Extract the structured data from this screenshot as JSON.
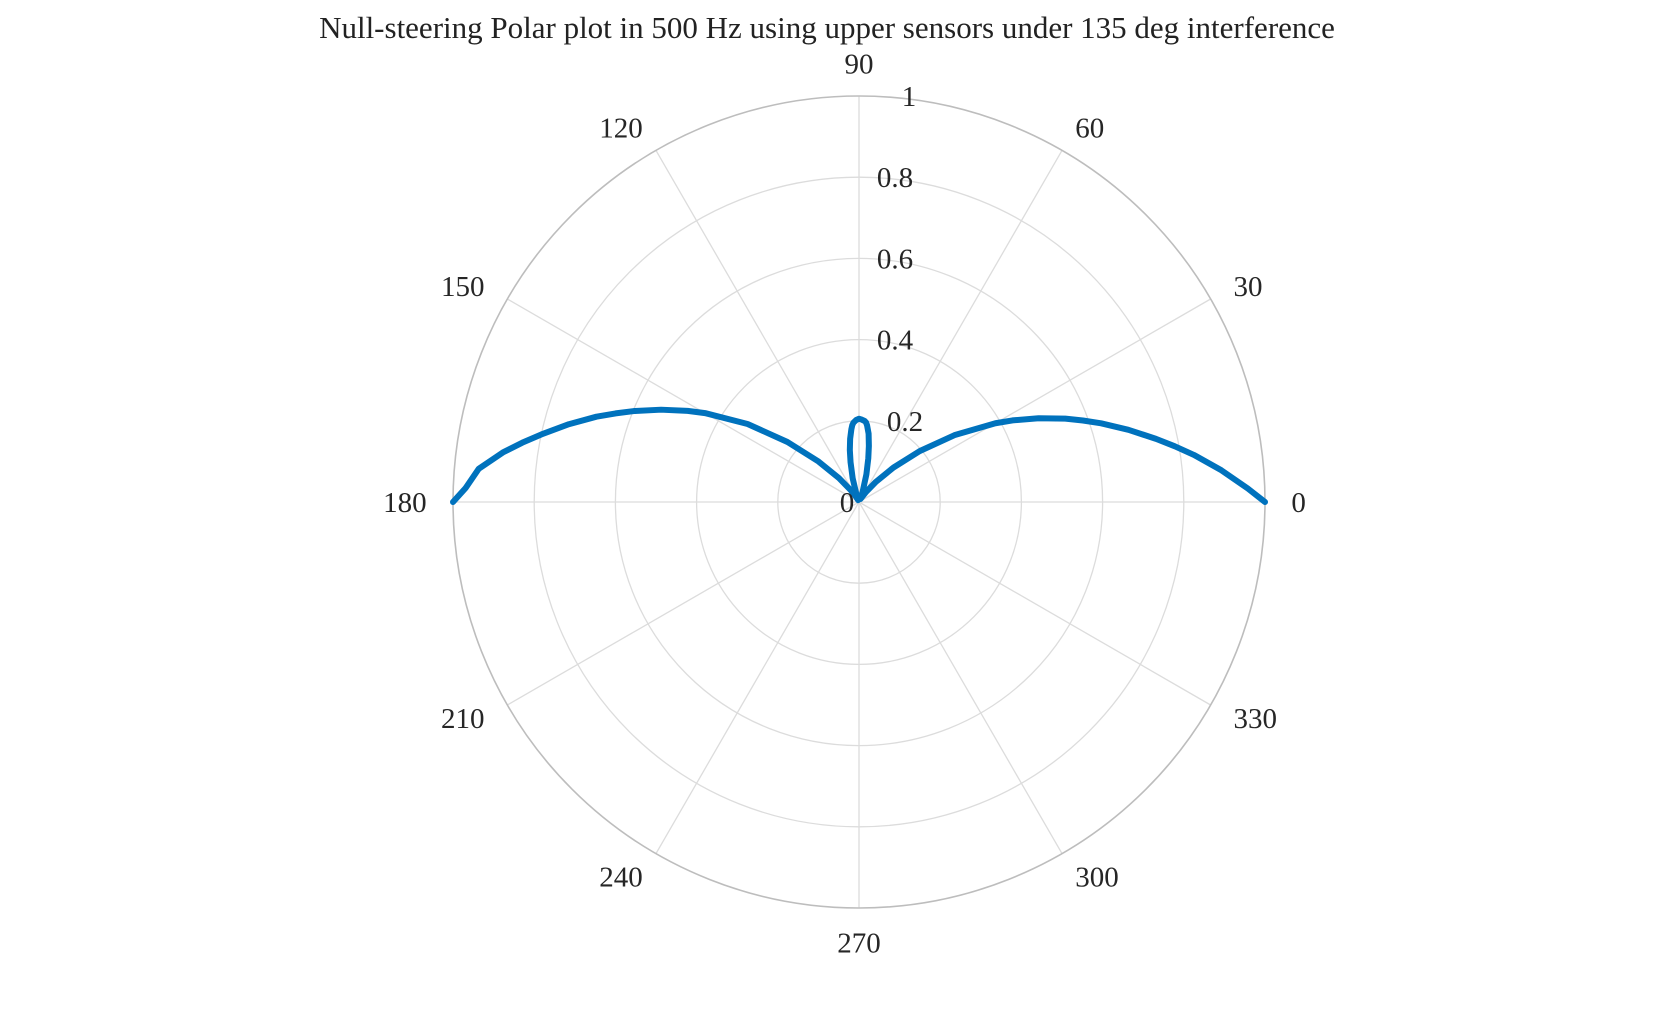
{
  "chart_data": {
    "type": "line",
    "subtype": "polar",
    "title": "Null-steering Polar plot in 500 Hz using upper sensors under 135 deg interference",
    "theta_unit": "degrees",
    "r_lim": [
      0,
      1
    ],
    "r_ticks": [
      0,
      0.2,
      0.4,
      0.6,
      0.8,
      1
    ],
    "r_tick_labels": [
      "0",
      "0.2",
      "0.4",
      "0.6",
      "0.8",
      "1"
    ],
    "theta_ticks": [
      0,
      30,
      60,
      90,
      120,
      150,
      180,
      210,
      240,
      270,
      300,
      330
    ],
    "theta_tick_labels": [
      "0",
      "30",
      "60",
      "90",
      "120",
      "150",
      "180",
      "210",
      "240",
      "270",
      "300",
      "330"
    ],
    "grid": true,
    "line_color": "#0072BD",
    "grid_color": "#dcdcdc",
    "outer_ring_color": "#bdbdbd",
    "series": [
      {
        "theta": [
          0,
          2,
          5,
          8,
          10,
          12,
          15,
          18,
          20,
          22,
          25,
          28,
          30,
          35,
          40,
          45,
          50,
          55,
          60,
          65,
          70,
          75,
          78,
          80,
          82,
          84,
          85,
          86,
          88,
          90,
          92,
          94,
          95,
          96,
          98,
          100,
          102,
          105,
          110,
          115,
          120,
          125,
          130,
          135,
          140,
          145,
          150,
          152,
          155,
          158,
          160,
          162,
          165,
          168,
          170,
          172,
          175,
          178,
          180
        ],
        "r": [
          1.0,
          0.958,
          0.896,
          0.833,
          0.79,
          0.748,
          0.687,
          0.627,
          0.587,
          0.548,
          0.488,
          0.428,
          0.388,
          0.287,
          0.195,
          0.12,
          0.065,
          0.03,
          0.012,
          0.008,
          0.025,
          0.07,
          0.11,
          0.14,
          0.17,
          0.19,
          0.197,
          0.2,
          0.203,
          0.205,
          0.202,
          0.196,
          0.19,
          0.18,
          0.157,
          0.13,
          0.1,
          0.06,
          0.015,
          0.005,
          0.014,
          0.036,
          0.077,
          0.141,
          0.23,
          0.335,
          0.438,
          0.478,
          0.538,
          0.598,
          0.638,
          0.68,
          0.74,
          0.8,
          0.842,
          0.884,
          0.94,
          0.97,
          1.0
        ]
      }
    ]
  }
}
